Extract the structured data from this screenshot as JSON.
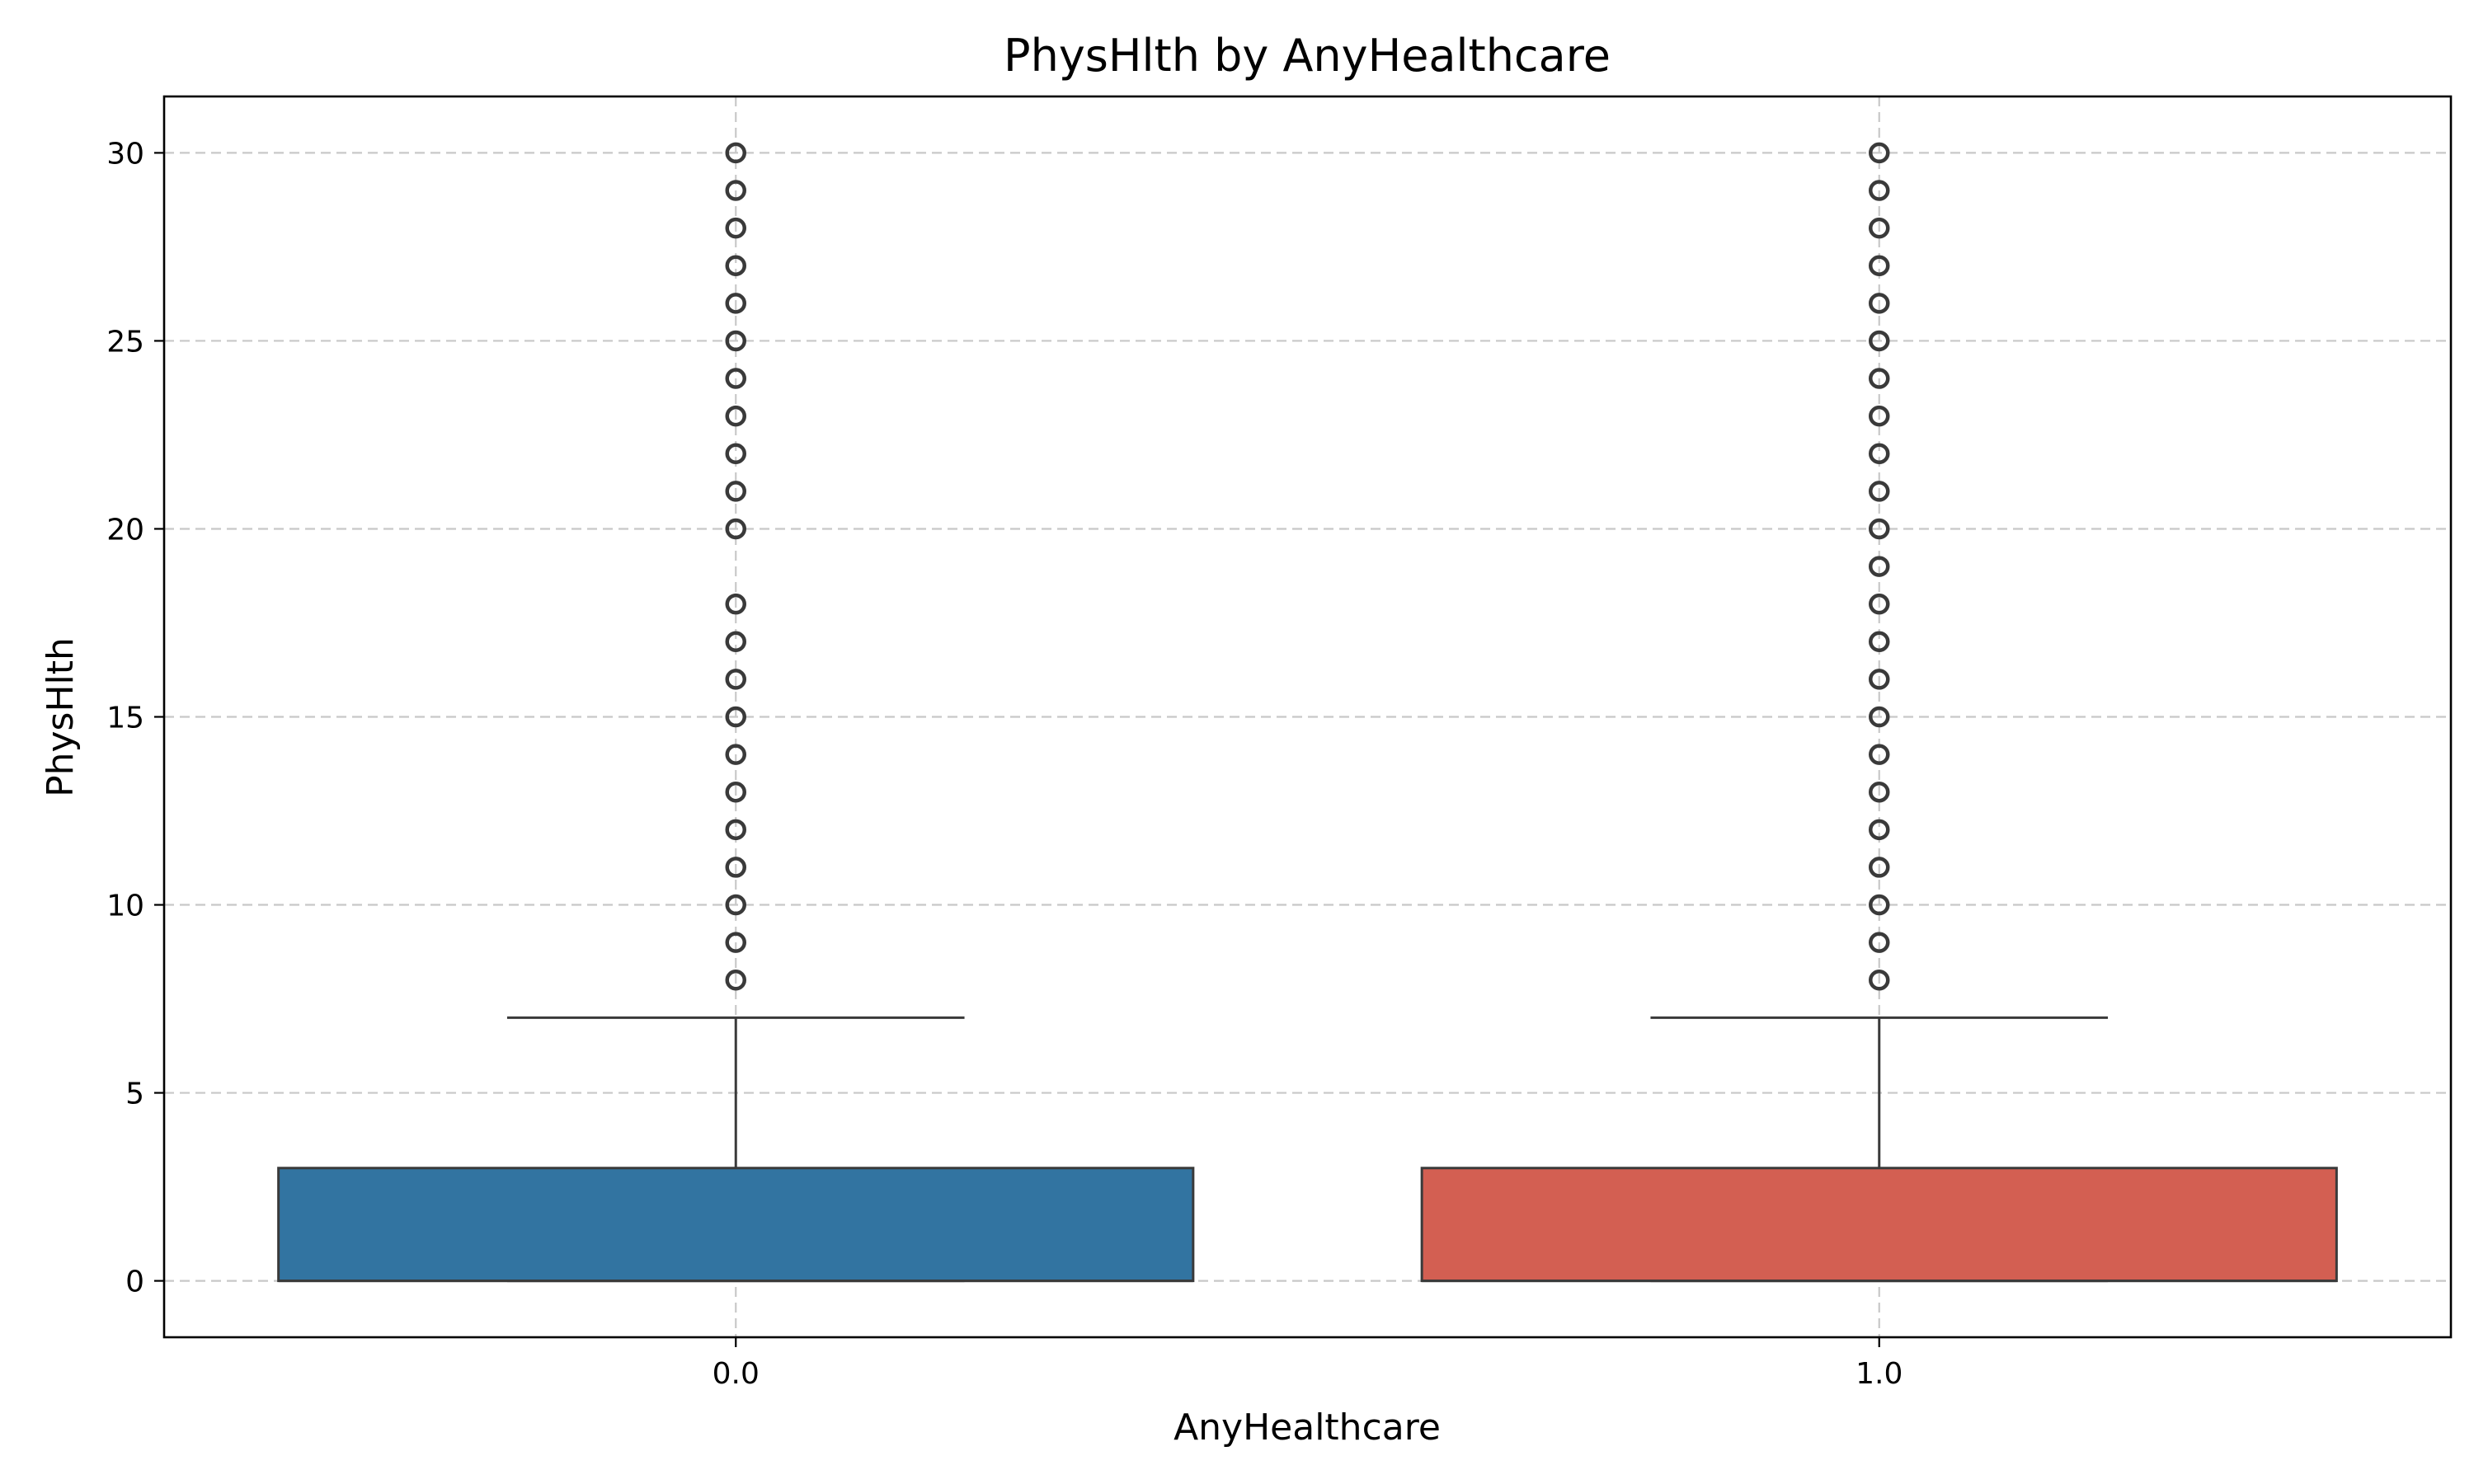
{
  "chart_data": {
    "type": "box",
    "title": "PhysHlth by AnyHealthcare",
    "xlabel": "AnyHealthcare",
    "ylabel": "PhysHlth",
    "ylim": [
      -1.5,
      31.5
    ],
    "yticks": [
      0,
      5,
      10,
      15,
      20,
      25,
      30
    ],
    "grid": true,
    "categories": [
      "0.0",
      "1.0"
    ],
    "boxes": [
      {
        "category": "0.0",
        "color": "#3274a1",
        "q1": 0,
        "median": 0,
        "q3": 3,
        "whisker_low": 0,
        "whisker_high": 7,
        "outliers": [
          8,
          9,
          10,
          11,
          12,
          13,
          14,
          15,
          16,
          17,
          18,
          20,
          21,
          22,
          23,
          24,
          25,
          26,
          27,
          28,
          29,
          30
        ]
      },
      {
        "category": "1.0",
        "color": "#d35f52",
        "q1": 0,
        "median": 0,
        "q3": 3,
        "whisker_low": 0,
        "whisker_high": 7,
        "outliers": [
          8,
          9,
          10,
          11,
          12,
          13,
          14,
          15,
          16,
          17,
          18,
          19,
          20,
          21,
          22,
          23,
          24,
          25,
          26,
          27,
          28,
          29,
          30
        ]
      }
    ]
  }
}
